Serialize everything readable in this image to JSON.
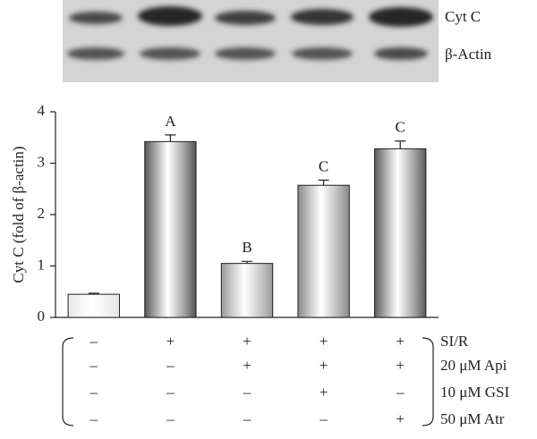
{
  "blot": {
    "labels": [
      "Cyt C",
      "β-Actin"
    ]
  },
  "chart_data": {
    "type": "bar",
    "ylabel": "Cyt C (fold of β-actin)",
    "categories": [
      null,
      null,
      null,
      null,
      null
    ],
    "values": [
      0.45,
      3.42,
      1.05,
      2.57,
      3.28
    ],
    "errors": [
      0.02,
      0.13,
      0.04,
      0.1,
      0.15
    ],
    "letters": [
      null,
      "A",
      "B",
      "C",
      "C"
    ],
    "colors": [
      "#e6e6e6",
      "#555555",
      "#999999",
      "#888888",
      "#5a5a5a"
    ],
    "ylim": [
      0,
      4
    ],
    "yticks": [
      0,
      1,
      2,
      3,
      4
    ],
    "treatments": [
      {
        "label": "SI/R",
        "signs": [
          "–",
          "+",
          "+",
          "+",
          "+"
        ]
      },
      {
        "label": "20 μM Api",
        "signs": [
          "–",
          "–",
          "+",
          "+",
          "+"
        ]
      },
      {
        "label": "10 μM GSI",
        "signs": [
          "–",
          "–",
          "–",
          "+",
          "–"
        ]
      },
      {
        "label": "50 μM Atr",
        "signs": [
          "–",
          "–",
          "–",
          "–",
          "+"
        ]
      }
    ]
  }
}
